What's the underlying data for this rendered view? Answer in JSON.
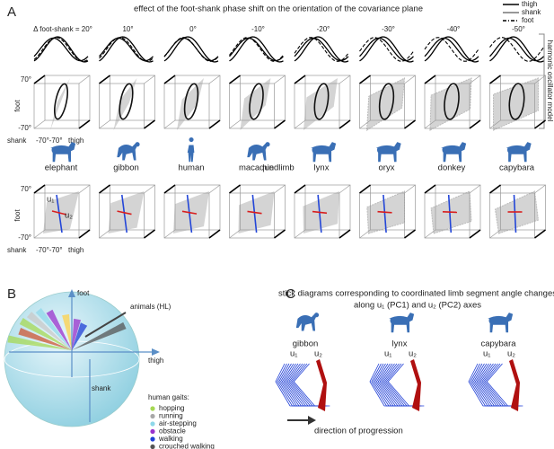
{
  "panel_a": {
    "label": "A",
    "title": "effect of the foot-shank phase shift on the orientation of the covariance plane",
    "legend": [
      "thigh",
      "shank",
      "foot"
    ],
    "side_label": "harmonic oscillator model",
    "phase_shifts": [
      "Δ foot-shank = 20°",
      "10°",
      "0°",
      "-10°",
      "-20°",
      "-30°",
      "-40°",
      "-50°"
    ],
    "axis": {
      "foot": "foot",
      "pos": "70°",
      "neg": "-70°",
      "shank": "shank",
      "thigh": "thigh",
      "bottom": "-70°-70°"
    },
    "animals": [
      "elephant",
      "gibbon",
      "human",
      "macaque",
      "lynx",
      "oryx",
      "donkey",
      "capybara"
    ],
    "hindlimb": "hindlimb",
    "u1": "u₁",
    "u2": "u₂"
  },
  "panel_b": {
    "label": "B",
    "foot": "foot",
    "thigh": "thigh",
    "shank": "shank",
    "animals": "animals (HL)",
    "gaits_title": "human gaits:",
    "gaits": [
      {
        "name": "hopping",
        "color": "#a6d854"
      },
      {
        "name": "running",
        "color": "#a8a8a8"
      },
      {
        "name": "air-stepping",
        "color": "#8fd8ea"
      },
      {
        "name": "obstacle",
        "color": "#9932cc"
      },
      {
        "name": "walking",
        "color": "#1f3fd6"
      },
      {
        "name": "crouched walking",
        "color": "#555555"
      }
    ]
  },
  "panel_c": {
    "label": "C",
    "title": [
      "stick diagrams corresponding to coordinated limb segment angle changes",
      "along u₁ (PC1) and u₂ (PC2) axes"
    ],
    "animals": [
      "gibbon",
      "lynx",
      "capybara"
    ],
    "u1": "u₁",
    "u2": "u₂",
    "direction": "direction of progression"
  }
}
